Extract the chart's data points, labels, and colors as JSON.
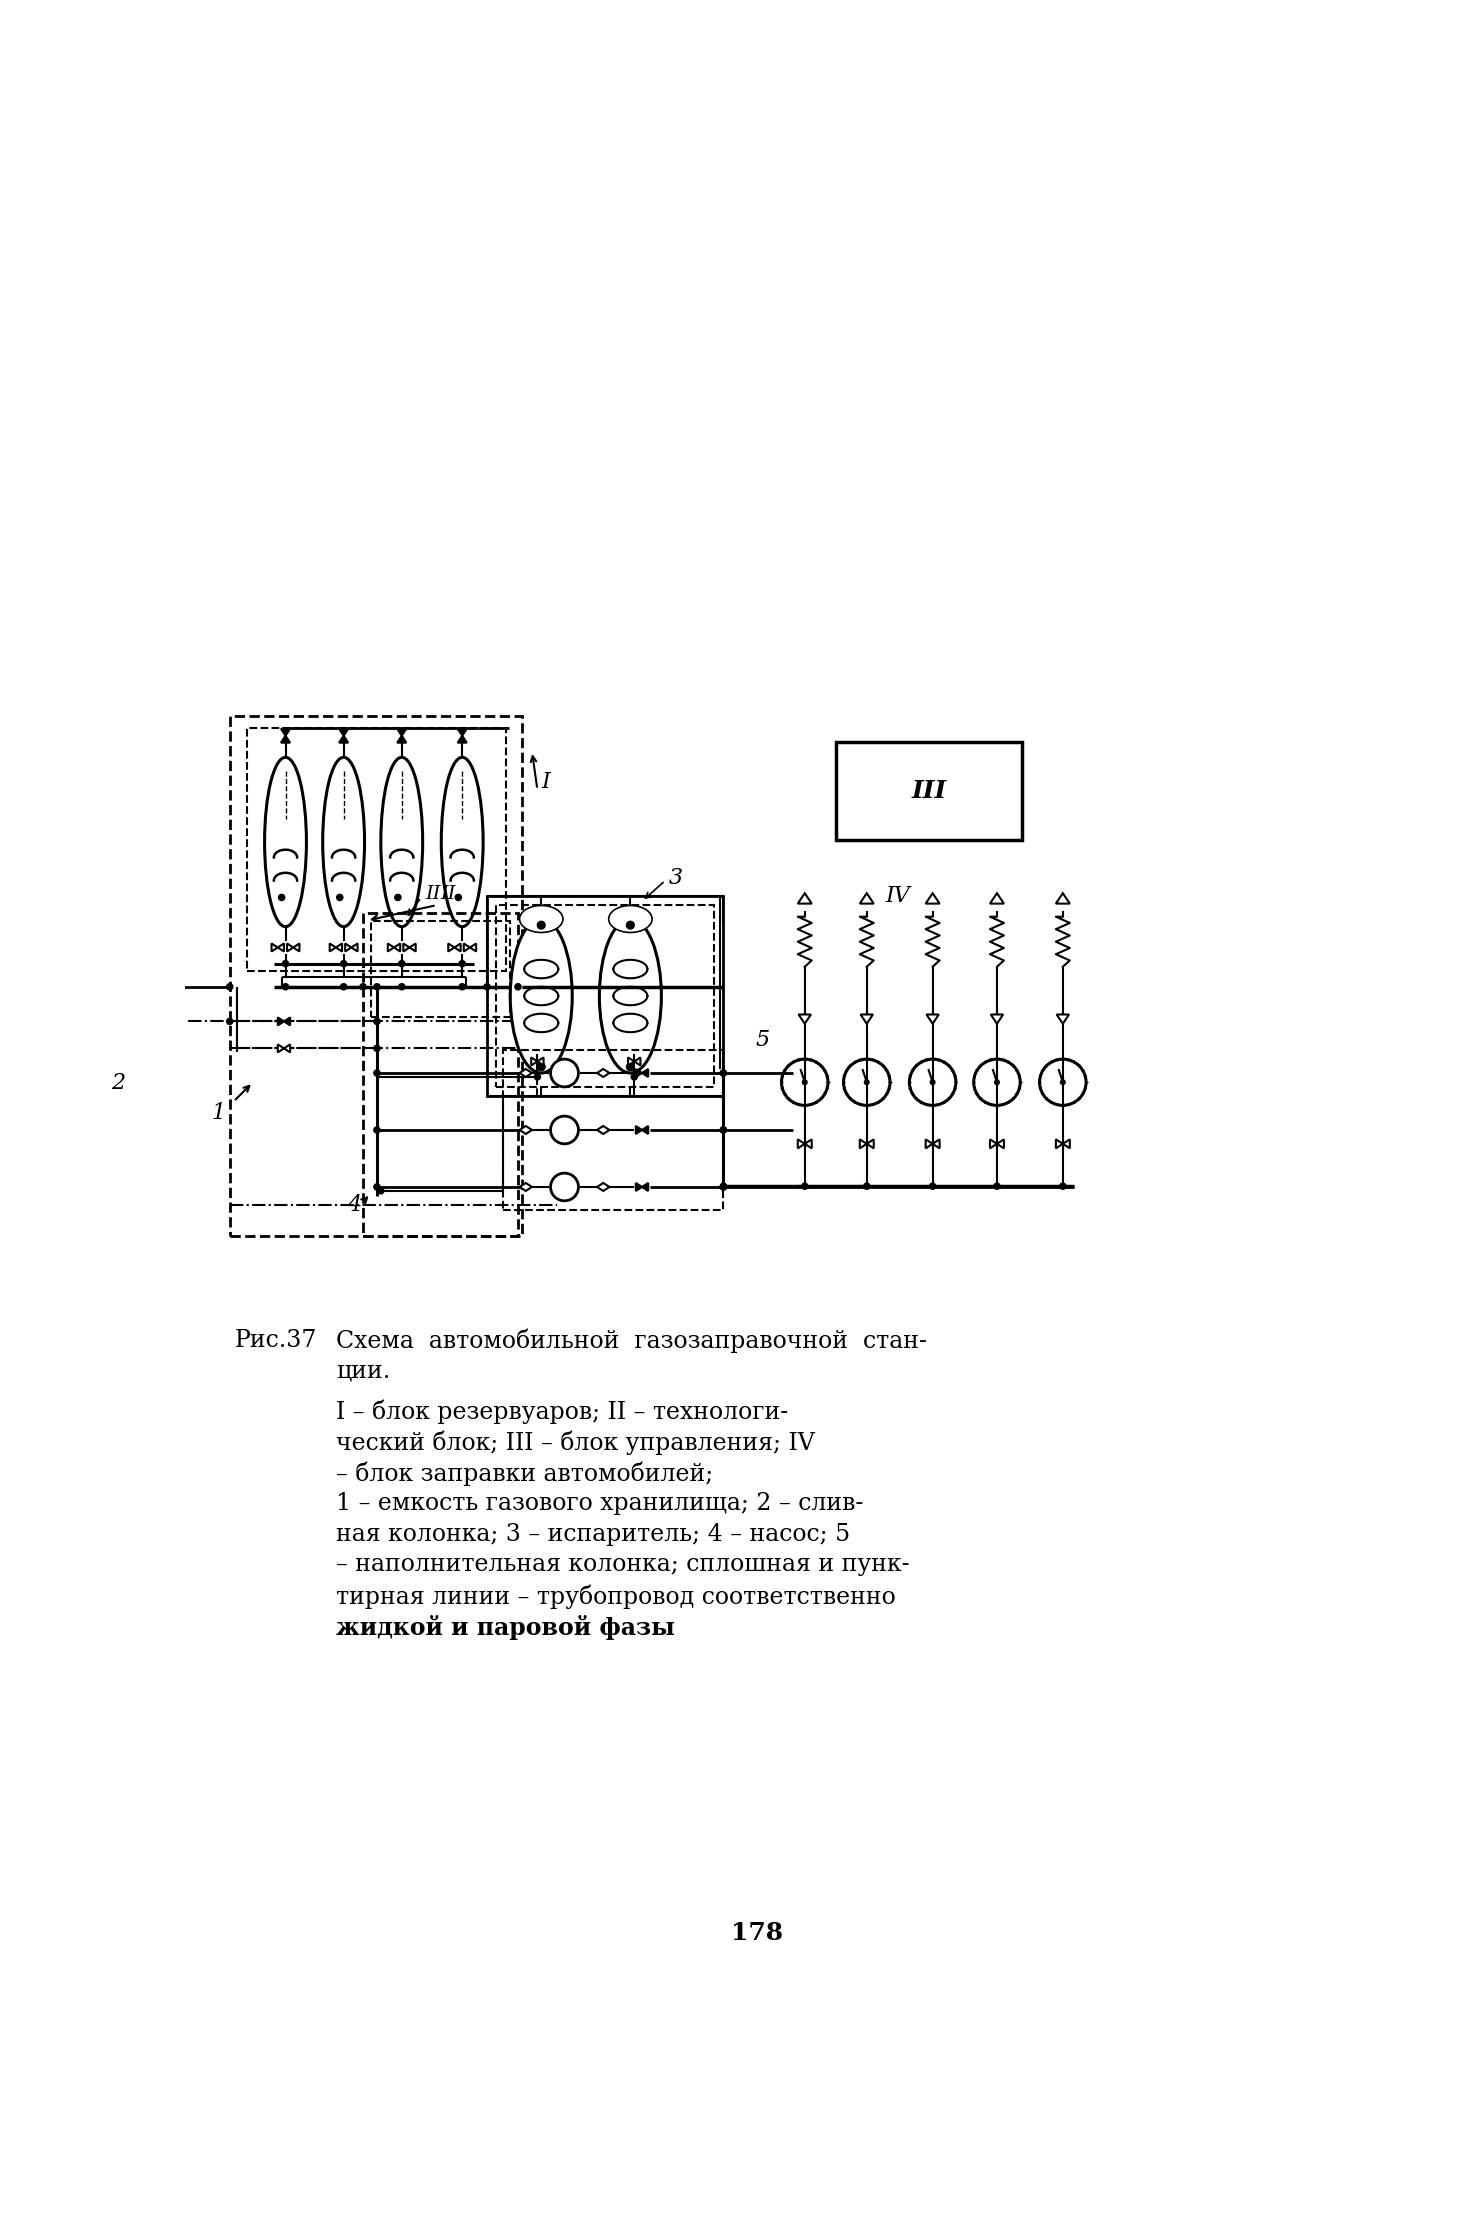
{
  "bg_color": "#ffffff",
  "line_color": "#000000",
  "page_number": "178",
  "caption_title_prefix": "Рис.37",
  "caption_title_text": "Схема  автомобильной  газозаправочной  стан-",
  "caption_title_text2": "ции.",
  "desc_lines": [
    "I – блок резервуаров; II – технологи-",
    "ческий блок; III – блок управления; IV",
    "– блок заправки автомобилей;",
    "1 – емкость газового хранилища; 2 – слив-",
    "ная колонка; 3 – испаритель; 4 – насос; 5",
    "– наполнительная колонка; сплошная и пунк-",
    "тирная линии – трубопровод соответственно",
    "жидкой и паровой фазы"
  ],
  "desc_bold_last": true
}
